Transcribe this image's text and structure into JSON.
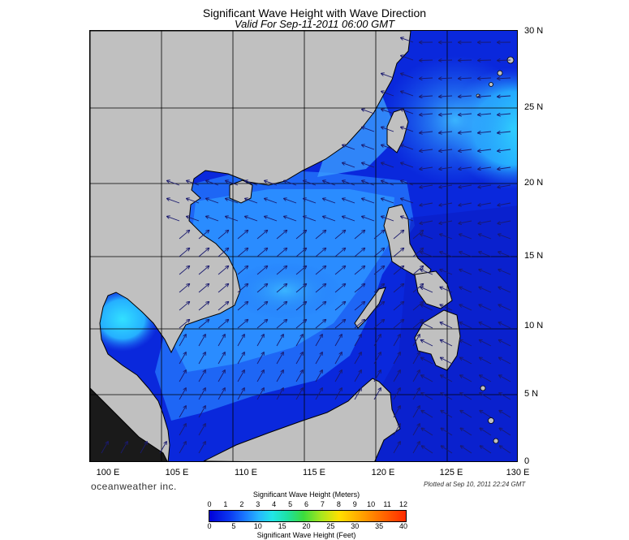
{
  "header": {
    "title": "Significant Wave Height with Wave Direction",
    "subtitle": "Valid For Sep-11-2011 06:00 GMT"
  },
  "map": {
    "lat_labels": [
      "30 N",
      "25 N",
      "20 N",
      "15 N",
      "10 N",
      "5 N",
      "0"
    ],
    "lon_labels": [
      "100 E",
      "105 E",
      "110 E",
      "115 E",
      "120 E",
      "125 E",
      "130 E"
    ],
    "land_color": "#c0c0c0",
    "sea_colors": {
      "deep": "#0a1ed2",
      "mid": "#1e78f5",
      "light": "#3ca0ff",
      "cyan": "#32d2ff"
    }
  },
  "footer": {
    "brand": "oceanweather inc.",
    "plotted": "Plotted at Sep 10, 2011 22:24 GMT"
  },
  "legend": {
    "meters_title": "Significant Wave Height (Meters)",
    "meters_ticks": [
      "0",
      "1",
      "2",
      "3",
      "4",
      "5",
      "6",
      "7",
      "8",
      "9",
      "10",
      "11",
      "12"
    ],
    "feet_ticks": [
      "0",
      "5",
      "10",
      "15",
      "20",
      "25",
      "30",
      "35",
      "40"
    ],
    "feet_title": "Significant Wave Height (Feet)"
  }
}
